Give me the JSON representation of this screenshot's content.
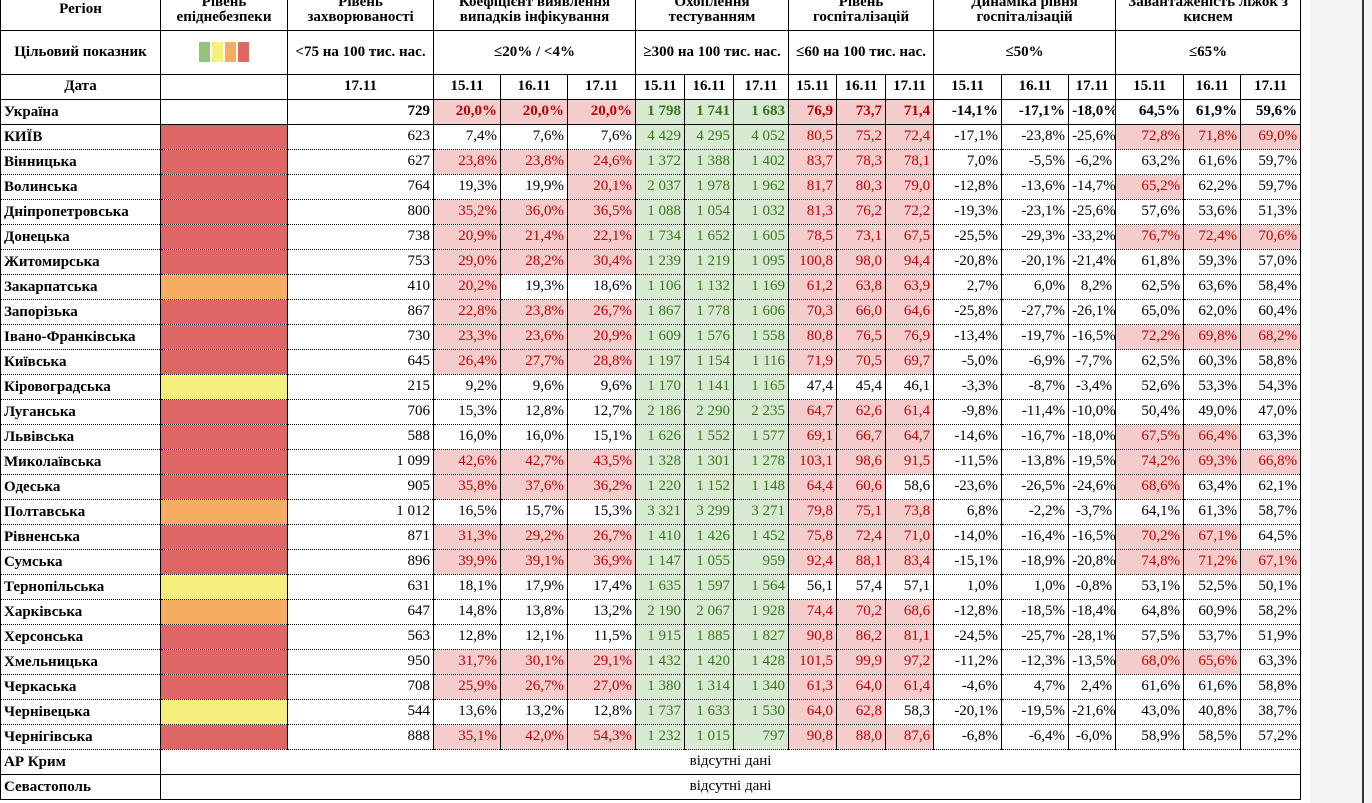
{
  "header": {
    "columns": [
      "Регіон",
      "Рівень епіднебезпеки",
      "Рівень захворюваності",
      "Коефіцієнт виявлення випадків інфікування",
      "Охоплення тестуванням",
      "Рівень госпіталізацій",
      "Динаміка рівня госпіталізацій",
      "Завантаженість ліжок з киснем"
    ],
    "target_label": "Цільовий показник",
    "targets": [
      "<75 на 100 тис. нас.",
      "≤20% / <4%",
      "≥300 на 100 тис. нас.",
      "≤60 на 100 тис. нас.",
      "≤50%",
      "≤65%"
    ],
    "date_label": "Дата",
    "dates": [
      "15.11",
      "16.11",
      "17.11"
    ]
  },
  "colors": {
    "levels": [
      "#93c47d",
      "#f3ef7a",
      "#f6ad62",
      "#e06666"
    ],
    "p": {
      "bg": "#f4cccc",
      "fg": "#c00000"
    },
    "g": {
      "bg": "#d9ead3",
      "fg": "#38761d"
    }
  },
  "rows": [
    {
      "region": "Україна",
      "level_color": null,
      "incidence": "729",
      "values": [
        "20,0%",
        "20,0%",
        "20,0%",
        "1 798",
        "1 741",
        "1 683",
        "76,9",
        "73,7",
        "71,4",
        "-14,1%",
        "-17,1%",
        "-18,0%",
        "64,5%",
        "61,9%",
        "59,6%"
      ],
      "styles": "pppgggppp------"
    },
    {
      "region": "КИЇВ",
      "level_color": "#e06666",
      "incidence": "623",
      "values": [
        "7,4%",
        "7,6%",
        "7,6%",
        "4 429",
        "4 295",
        "4 052",
        "80,5",
        "75,2",
        "72,4",
        "-17,1%",
        "-23,8%",
        "-25,6%",
        "72,8%",
        "71,8%",
        "69,0%"
      ],
      "styles": "---gggppp---ppp"
    },
    {
      "region": "Вінницька",
      "level_color": "#e06666",
      "incidence": "627",
      "values": [
        "23,8%",
        "23,8%",
        "24,6%",
        "1 372",
        "1 388",
        "1 402",
        "83,7",
        "78,3",
        "78,1",
        "7,0%",
        "-5,5%",
        "-6,2%",
        "63,2%",
        "61,6%",
        "59,7%"
      ],
      "styles": "pppgggppp------"
    },
    {
      "region": "Волинська",
      "level_color": "#e06666",
      "incidence": "764",
      "values": [
        "19,3%",
        "19,9%",
        "20,1%",
        "2 037",
        "1 978",
        "1 962",
        "81,7",
        "80,3",
        "79,0",
        "-12,8%",
        "-13,6%",
        "-14,7%",
        "65,2%",
        "62,2%",
        "59,7%"
      ],
      "styles": "--pgggppp---p--"
    },
    {
      "region": "Дніпропетровська",
      "level_color": "#e06666",
      "incidence": "800",
      "values": [
        "35,2%",
        "36,0%",
        "36,5%",
        "1 088",
        "1 054",
        "1 032",
        "81,3",
        "76,2",
        "72,2",
        "-19,3%",
        "-23,1%",
        "-25,6%",
        "57,6%",
        "53,6%",
        "51,3%"
      ],
      "styles": "pppgggppp------"
    },
    {
      "region": "Донецька",
      "level_color": "#e06666",
      "incidence": "738",
      "values": [
        "20,9%",
        "21,4%",
        "22,1%",
        "1 734",
        "1 652",
        "1 605",
        "78,5",
        "73,1",
        "67,5",
        "-25,5%",
        "-29,3%",
        "-33,2%",
        "76,7%",
        "72,4%",
        "70,6%"
      ],
      "styles": "pppgggppp---ppp"
    },
    {
      "region": "Житомирська",
      "level_color": "#e06666",
      "incidence": "753",
      "values": [
        "29,0%",
        "28,2%",
        "30,4%",
        "1 239",
        "1 219",
        "1 095",
        "100,8",
        "98,0",
        "94,4",
        "-20,8%",
        "-20,1%",
        "-21,4%",
        "61,8%",
        "59,3%",
        "57,0%"
      ],
      "styles": "pppgggppp------"
    },
    {
      "region": "Закарпатська",
      "level_color": "#f6ad62",
      "incidence": "410",
      "values": [
        "20,2%",
        "19,3%",
        "18,6%",
        "1 106",
        "1 132",
        "1 169",
        "61,2",
        "63,8",
        "63,9",
        "2,7%",
        "6,0%",
        "8,2%",
        "62,5%",
        "63,6%",
        "58,4%"
      ],
      "styles": "p--gggppp------"
    },
    {
      "region": "Запорізька",
      "level_color": "#e06666",
      "incidence": "867",
      "values": [
        "22,8%",
        "23,8%",
        "26,7%",
        "1 867",
        "1 778",
        "1 606",
        "70,3",
        "66,0",
        "64,6",
        "-25,8%",
        "-27,7%",
        "-26,1%",
        "65,0%",
        "62,0%",
        "60,4%"
      ],
      "styles": "pppgggppp------"
    },
    {
      "region": "Івано-Франківська",
      "level_color": "#e06666",
      "incidence": "730",
      "values": [
        "23,3%",
        "23,6%",
        "20,9%",
        "1 609",
        "1 576",
        "1 558",
        "80,8",
        "76,5",
        "76,9",
        "-13,4%",
        "-19,7%",
        "-16,5%",
        "72,2%",
        "69,8%",
        "68,2%"
      ],
      "styles": "pppgggppp---ppp"
    },
    {
      "region": "Київська",
      "level_color": "#e06666",
      "incidence": "645",
      "values": [
        "26,4%",
        "27,7%",
        "28,8%",
        "1 197",
        "1 154",
        "1 116",
        "71,9",
        "70,5",
        "69,7",
        "-5,0%",
        "-6,9%",
        "-7,7%",
        "62,5%",
        "60,3%",
        "58,8%"
      ],
      "styles": "pppgggppp------"
    },
    {
      "region": "Кіровоградська",
      "level_color": "#f3ef7a",
      "incidence": "215",
      "values": [
        "9,2%",
        "9,6%",
        "9,6%",
        "1 170",
        "1 141",
        "1 165",
        "47,4",
        "45,4",
        "46,1",
        "-3,3%",
        "-8,7%",
        "-3,4%",
        "52,6%",
        "53,3%",
        "54,3%"
      ],
      "styles": "---ggg---------"
    },
    {
      "region": "Луганська",
      "level_color": "#e06666",
      "incidence": "706",
      "values": [
        "15,3%",
        "12,8%",
        "12,7%",
        "2 186",
        "2 290",
        "2 235",
        "64,7",
        "62,6",
        "61,4",
        "-9,8%",
        "-11,4%",
        "-10,0%",
        "50,4%",
        "49,0%",
        "47,0%"
      ],
      "styles": "---gggppp------"
    },
    {
      "region": "Львівська",
      "level_color": "#e06666",
      "incidence": "588",
      "values": [
        "16,0%",
        "16,0%",
        "15,1%",
        "1 626",
        "1 552",
        "1 577",
        "69,1",
        "66,7",
        "64,7",
        "-14,6%",
        "-16,7%",
        "-18,0%",
        "67,5%",
        "66,4%",
        "63,3%"
      ],
      "styles": "---gggppp---pp-"
    },
    {
      "region": "Миколаївська",
      "level_color": "#e06666",
      "incidence": "1 099",
      "values": [
        "42,6%",
        "42,7%",
        "43,5%",
        "1 328",
        "1 301",
        "1 278",
        "103,1",
        "98,6",
        "91,5",
        "-11,5%",
        "-13,8%",
        "-19,5%",
        "74,2%",
        "69,3%",
        "66,8%"
      ],
      "styles": "pppgggppp---ppp"
    },
    {
      "region": "Одеська",
      "level_color": "#e06666",
      "incidence": "905",
      "values": [
        "35,8%",
        "37,6%",
        "36,2%",
        "1 220",
        "1 152",
        "1 148",
        "64,4",
        "60,6",
        "58,6",
        "-23,6%",
        "-26,5%",
        "-24,6%",
        "68,6%",
        "63,4%",
        "62,1%"
      ],
      "styles": "pppgggpp----p--"
    },
    {
      "region": "Полтавська",
      "level_color": "#f6ad62",
      "incidence": "1 012",
      "values": [
        "16,5%",
        "15,7%",
        "15,3%",
        "3 321",
        "3 299",
        "3 271",
        "79,8",
        "75,1",
        "73,8",
        "6,8%",
        "-2,2%",
        "-3,7%",
        "64,1%",
        "61,3%",
        "58,7%"
      ],
      "styles": "---gggppp------"
    },
    {
      "region": "Рівненська",
      "level_color": "#e06666",
      "incidence": "871",
      "values": [
        "31,3%",
        "29,2%",
        "26,7%",
        "1 410",
        "1 426",
        "1 452",
        "75,8",
        "72,4",
        "71,0",
        "-14,0%",
        "-16,4%",
        "-16,5%",
        "70,2%",
        "67,1%",
        "64,5%"
      ],
      "styles": "pppgggppp---pp-"
    },
    {
      "region": "Сумська",
      "level_color": "#e06666",
      "incidence": "896",
      "values": [
        "39,9%",
        "39,1%",
        "36,9%",
        "1 147",
        "1 055",
        "959",
        "92,4",
        "88,1",
        "83,4",
        "-15,1%",
        "-18,9%",
        "-20,8%",
        "74,8%",
        "71,2%",
        "67,1%"
      ],
      "styles": "pppgggppp---ppp"
    },
    {
      "region": "Тернопільська",
      "level_color": "#f3ef7a",
      "incidence": "631",
      "values": [
        "18,1%",
        "17,9%",
        "17,4%",
        "1 635",
        "1 597",
        "1 564",
        "56,1",
        "57,4",
        "57,1",
        "1,0%",
        "1,0%",
        "-0,8%",
        "53,1%",
        "52,5%",
        "50,1%"
      ],
      "styles": "---ggg---------"
    },
    {
      "region": "Харківська",
      "level_color": "#f6ad62",
      "incidence": "647",
      "values": [
        "14,8%",
        "13,8%",
        "13,2%",
        "2 190",
        "2 067",
        "1 928",
        "74,4",
        "70,2",
        "68,6",
        "-12,8%",
        "-18,5%",
        "-18,4%",
        "64,8%",
        "60,9%",
        "58,2%"
      ],
      "styles": "---gggppp------"
    },
    {
      "region": "Херсонська",
      "level_color": "#e06666",
      "incidence": "563",
      "values": [
        "12,8%",
        "12,1%",
        "11,5%",
        "1 915",
        "1 885",
        "1 827",
        "90,8",
        "86,2",
        "81,1",
        "-24,5%",
        "-25,7%",
        "-28,1%",
        "57,5%",
        "53,7%",
        "51,9%"
      ],
      "styles": "---gggppp------"
    },
    {
      "region": "Хмельницька",
      "level_color": "#e06666",
      "incidence": "950",
      "values": [
        "31,7%",
        "30,1%",
        "29,1%",
        "1 432",
        "1 420",
        "1 428",
        "101,5",
        "99,9",
        "97,2",
        "-11,2%",
        "-12,3%",
        "-13,5%",
        "68,0%",
        "65,6%",
        "63,3%"
      ],
      "styles": "pppgggppp---pp-"
    },
    {
      "region": "Черкаська",
      "level_color": "#e06666",
      "incidence": "708",
      "values": [
        "25,9%",
        "26,7%",
        "27,0%",
        "1 380",
        "1 314",
        "1 340",
        "61,3",
        "64,0",
        "61,4",
        "-4,6%",
        "4,7%",
        "2,4%",
        "61,6%",
        "61,6%",
        "58,8%"
      ],
      "styles": "pppgggppp------"
    },
    {
      "region": "Чернівецька",
      "level_color": "#f3ef7a",
      "incidence": "544",
      "values": [
        "13,6%",
        "13,2%",
        "12,8%",
        "1 737",
        "1 633",
        "1 530",
        "64,0",
        "62,8",
        "58,3",
        "-20,1%",
        "-19,5%",
        "-21,6%",
        "43,0%",
        "40,8%",
        "38,7%"
      ],
      "styles": "---gggpp-------"
    },
    {
      "region": "Чернігівська",
      "level_color": "#e06666",
      "incidence": "888",
      "values": [
        "35,1%",
        "42,0%",
        "54,3%",
        "1 232",
        "1 015",
        "797",
        "90,8",
        "88,0",
        "87,6",
        "-6,8%",
        "-6,4%",
        "-6,0%",
        "58,9%",
        "58,5%",
        "57,2%"
      ],
      "styles": "pppgggppp------"
    }
  ],
  "no_data_rows": [
    {
      "region": "АР Крим",
      "text": "відсутні дані"
    },
    {
      "region": "Севастополь",
      "text": "відсутні дані"
    }
  ]
}
